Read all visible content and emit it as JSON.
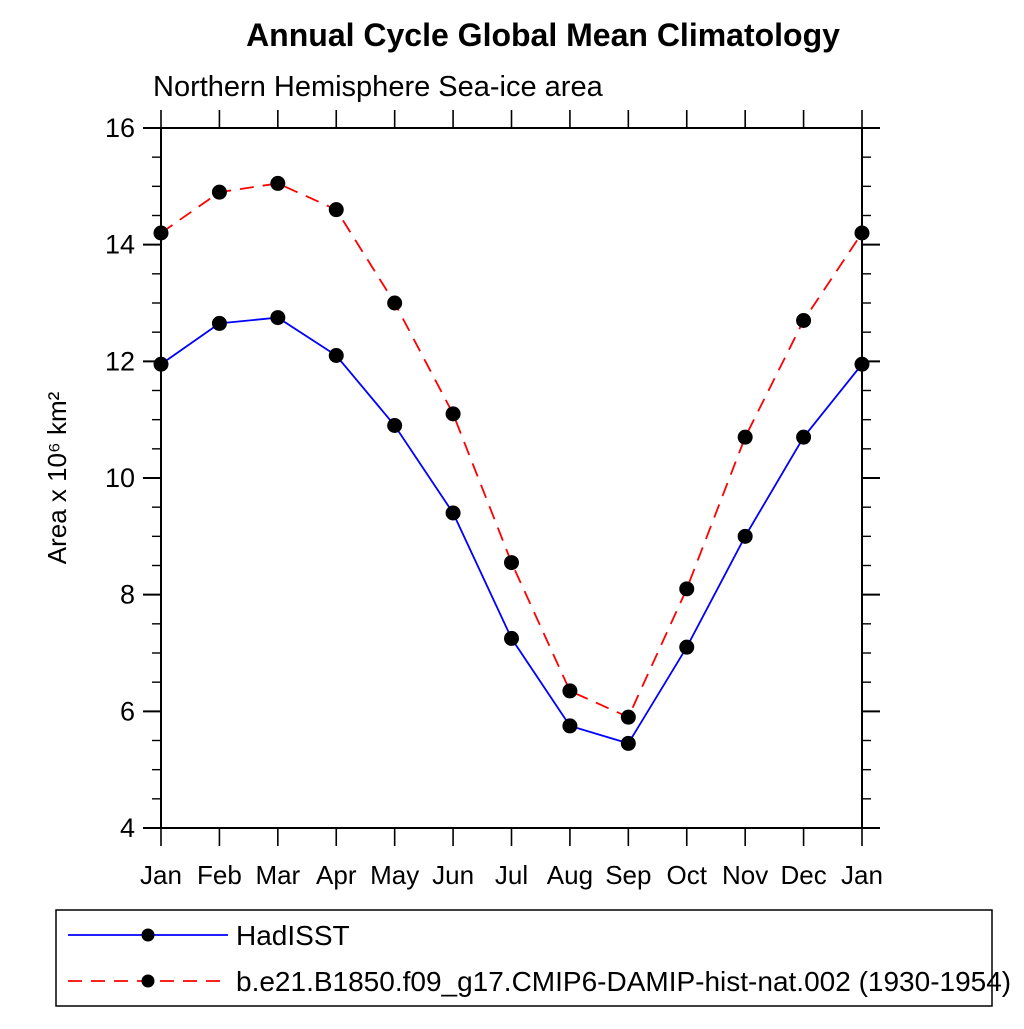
{
  "chart_data": {
    "type": "line",
    "title": "Annual Cycle Global Mean Climatology",
    "subtitle": "Northern Hemisphere Sea-ice area",
    "ylabel": "Area x 10⁶ km²",
    "xlabel": "",
    "categories": [
      "Jan",
      "Feb",
      "Mar",
      "Apr",
      "May",
      "Jun",
      "Jul",
      "Aug",
      "Sep",
      "Oct",
      "Nov",
      "Dec",
      "Jan"
    ],
    "series": [
      {
        "name": "HadISST",
        "color": "#0000ff",
        "line_style": "solid",
        "marker": "black-dot",
        "values": [
          11.95,
          12.65,
          12.75,
          12.1,
          10.9,
          9.4,
          7.25,
          5.75,
          5.45,
          7.1,
          9.0,
          10.7,
          11.95
        ]
      },
      {
        "name": "b.e21.B1850.f09_g17.CMIP6-DAMIP-hist-nat.002 (1930-1954)",
        "color": "#ff0000",
        "line_style": "dashed",
        "marker": "black-dot",
        "values": [
          14.2,
          14.9,
          15.05,
          14.6,
          13.0,
          11.1,
          8.55,
          6.35,
          5.9,
          8.1,
          10.7,
          12.7,
          14.2
        ]
      }
    ],
    "ylim": [
      4,
      16
    ],
    "y_major_step": 2,
    "y_minor_step": 0.5,
    "y_tick_labels": [
      "4",
      "6",
      "8",
      "10",
      "12",
      "14",
      "16"
    ],
    "marker_color": "#000000",
    "axis_color": "#000000",
    "grid": false,
    "legend_position": "bottom-left-box",
    "ticks": "outward-all-four-sides"
  }
}
